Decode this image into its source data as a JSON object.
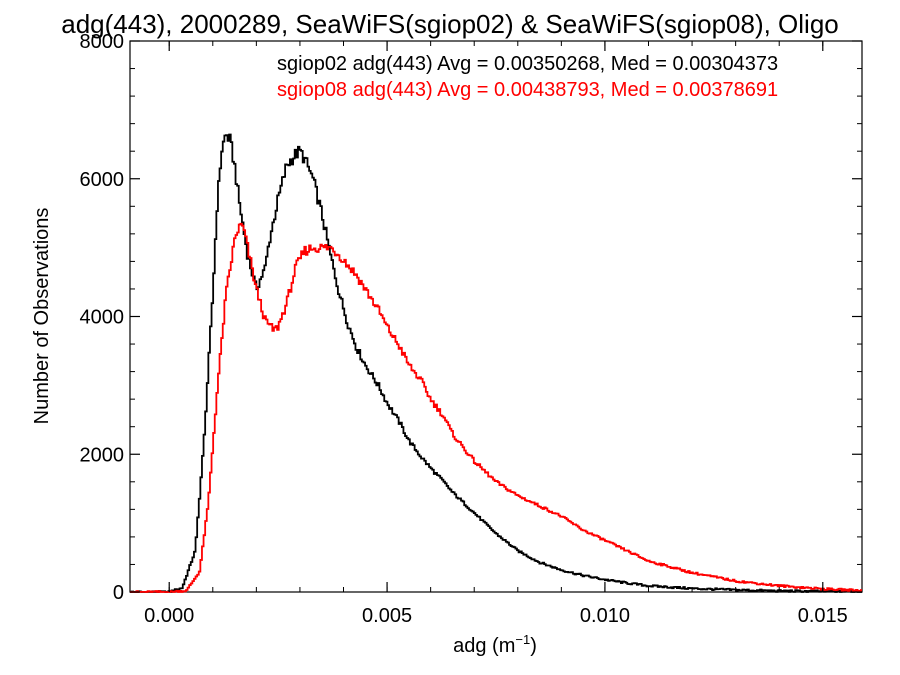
{
  "chart_data": {
    "type": "line",
    "title": "adg(443), 2000289, SeaWiFS(sgiop02) & SeaWiFS(sgiop08), Oligo",
    "xlabel_main": "adg (m",
    "xlabel_sup": "−1",
    "xlabel_end": ")",
    "ylabel": "Number of Observations",
    "xlim": [
      -0.0009,
      0.0159
    ],
    "ylim": [
      0,
      8000
    ],
    "xticks": [
      0.0,
      0.005,
      0.01,
      0.015
    ],
    "xtick_labels": [
      "0.000",
      "0.005",
      "0.010",
      "0.015"
    ],
    "yticks": [
      0,
      2000,
      4000,
      6000,
      8000
    ],
    "ytick_labels": [
      "0",
      "2000",
      "4000",
      "6000",
      "8000"
    ],
    "legend_placement": "top-right",
    "series": [
      {
        "name": "sgiop02 adg(443) Avg = 0.00350268, Med = 0.00304373",
        "color": "#000000",
        "x": [
          -0.0009,
          0.0,
          0.0003,
          0.0006,
          0.0008,
          0.001,
          0.0011,
          0.0012,
          0.0013,
          0.0014,
          0.0015,
          0.0016,
          0.0018,
          0.002,
          0.0022,
          0.0023,
          0.0025,
          0.0027,
          0.0029,
          0.003,
          0.0031,
          0.0033,
          0.0035,
          0.0037,
          0.0039,
          0.0041,
          0.0043,
          0.0045,
          0.0048,
          0.005,
          0.0053,
          0.0055,
          0.0058,
          0.006,
          0.0063,
          0.0065,
          0.007,
          0.0075,
          0.008,
          0.0085,
          0.009,
          0.0095,
          0.01,
          0.0105,
          0.011,
          0.012,
          0.013,
          0.014,
          0.015,
          0.0159
        ],
        "y": [
          0,
          0,
          60,
          600,
          2200,
          4300,
          5600,
          6400,
          6650,
          6550,
          6200,
          5700,
          4900,
          4400,
          4700,
          5100,
          5700,
          6200,
          6350,
          6400,
          6300,
          6000,
          5500,
          4900,
          4350,
          3900,
          3550,
          3300,
          3000,
          2750,
          2450,
          2200,
          1950,
          1800,
          1600,
          1450,
          1150,
          850,
          600,
          430,
          320,
          240,
          180,
          130,
          90,
          50,
          30,
          15,
          8,
          5
        ]
      },
      {
        "name": "sgiop08 adg(443) Avg = 0.00438793, Med = 0.00378691",
        "color": "#ff0000",
        "x": [
          -0.0009,
          0.0,
          0.0004,
          0.0007,
          0.0009,
          0.0011,
          0.0013,
          0.0015,
          0.0016,
          0.0017,
          0.0018,
          0.002,
          0.0022,
          0.0024,
          0.0025,
          0.0027,
          0.0029,
          0.0031,
          0.0033,
          0.0035,
          0.0037,
          0.0039,
          0.0041,
          0.0043,
          0.0045,
          0.0048,
          0.005,
          0.0053,
          0.0055,
          0.0058,
          0.006,
          0.0063,
          0.0065,
          0.007,
          0.0075,
          0.008,
          0.0085,
          0.009,
          0.0095,
          0.01,
          0.0105,
          0.011,
          0.012,
          0.013,
          0.014,
          0.015,
          0.0159
        ],
        "y": [
          0,
          0,
          20,
          300,
          1300,
          2900,
          4300,
          5100,
          5300,
          5300,
          5000,
          4400,
          3950,
          3800,
          3850,
          4200,
          4700,
          4950,
          5000,
          5000,
          5000,
          4900,
          4750,
          4600,
          4400,
          4100,
          3850,
          3550,
          3300,
          3050,
          2800,
          2550,
          2300,
          1900,
          1600,
          1400,
          1250,
          1100,
          900,
          750,
          600,
          450,
          280,
          160,
          90,
          45,
          20
        ]
      }
    ]
  }
}
